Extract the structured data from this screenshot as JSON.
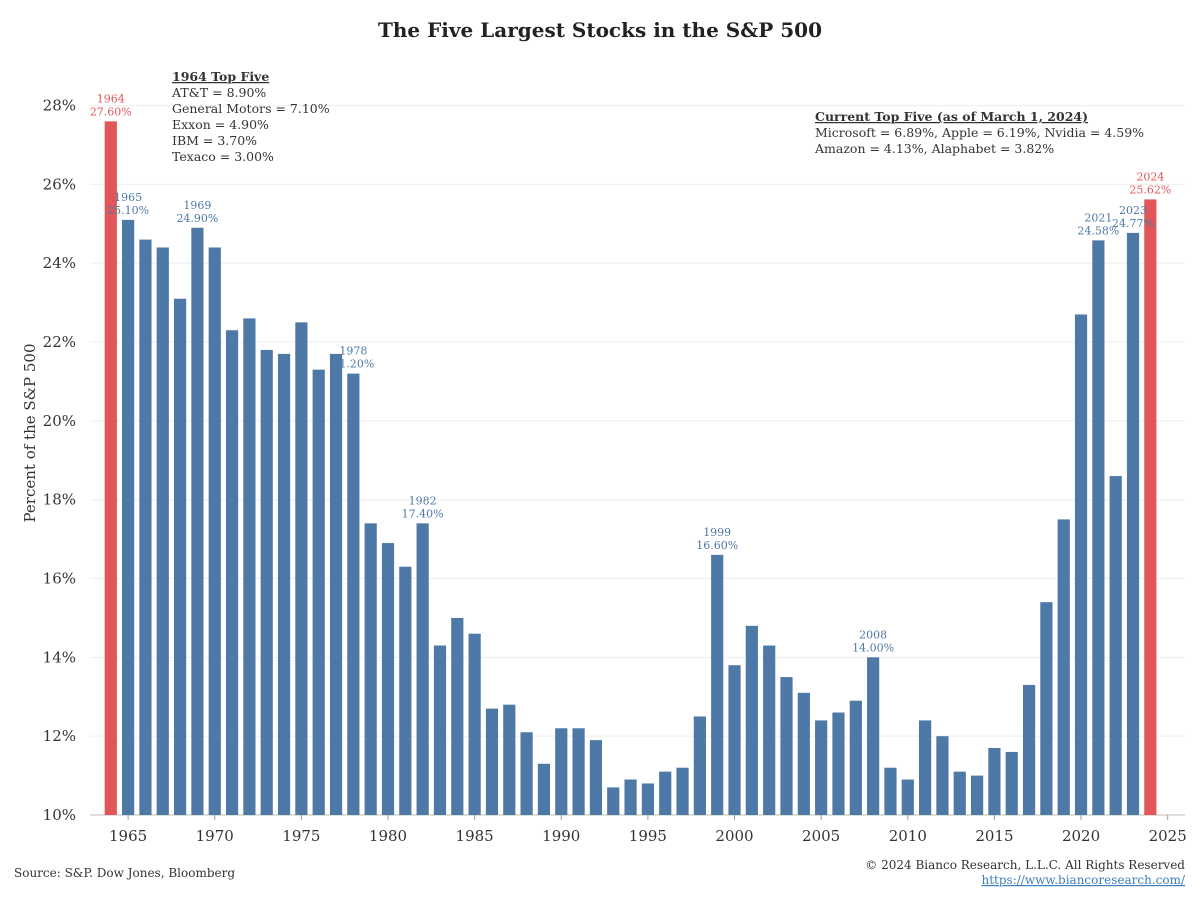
{
  "chart_data": {
    "type": "bar",
    "title": "The Five Largest Stocks in the S&P 500",
    "xlabel": "",
    "ylabel": "Percent of the S&P 500",
    "ylim": [
      10,
      28.7
    ],
    "xlim": [
      1962.8,
      2026
    ],
    "y_ticks": [
      "10%",
      "12%",
      "14%",
      "16%",
      "18%",
      "20%",
      "22%",
      "24%",
      "26%",
      "28%"
    ],
    "x_ticks": [
      "1965",
      "1970",
      "1975",
      "1980",
      "1985",
      "1990",
      "1995",
      "2000",
      "2005",
      "2010",
      "2015",
      "2020",
      "2025"
    ],
    "grid": "horizontal",
    "colors": {
      "bar": "#4e79a7",
      "highlight": "#e15759",
      "label": "#4e79a7"
    },
    "highlight_years": [
      1964,
      2024
    ],
    "years": [
      1964,
      1965,
      1966,
      1967,
      1968,
      1969,
      1970,
      1971,
      1972,
      1973,
      1974,
      1975,
      1976,
      1977,
      1978,
      1979,
      1980,
      1981,
      1982,
      1983,
      1984,
      1985,
      1986,
      1987,
      1988,
      1989,
      1990,
      1991,
      1992,
      1993,
      1994,
      1995,
      1996,
      1997,
      1998,
      1999,
      2000,
      2001,
      2002,
      2003,
      2004,
      2005,
      2006,
      2007,
      2008,
      2009,
      2010,
      2011,
      2012,
      2013,
      2014,
      2015,
      2016,
      2017,
      2018,
      2019,
      2020,
      2021,
      2022,
      2023,
      2024
    ],
    "values": [
      27.6,
      25.1,
      24.6,
      24.4,
      23.1,
      24.9,
      24.4,
      22.3,
      22.6,
      21.8,
      21.7,
      22.5,
      21.3,
      21.7,
      21.2,
      17.4,
      16.9,
      16.3,
      17.4,
      14.3,
      15.0,
      14.6,
      12.7,
      12.8,
      12.1,
      11.3,
      12.2,
      12.2,
      11.9,
      10.7,
      10.9,
      10.8,
      11.1,
      11.2,
      12.5,
      16.6,
      13.8,
      14.8,
      14.3,
      13.5,
      13.1,
      12.4,
      12.6,
      12.9,
      14.0,
      11.2,
      10.9,
      12.4,
      12.0,
      11.1,
      11.0,
      11.7,
      11.6,
      13.3,
      15.4,
      17.5,
      22.7,
      24.58,
      18.6,
      24.77,
      25.62
    ],
    "annotations": [
      {
        "year": 1964,
        "line1": "1964",
        "line2": "27.60%"
      },
      {
        "year": 1965,
        "line1": "1965",
        "line2": "25.10%"
      },
      {
        "year": 1969,
        "line1": "1969",
        "line2": "24.90%"
      },
      {
        "year": 1978,
        "line1": "1978",
        "line2": "21.20%"
      },
      {
        "year": 1982,
        "line1": "1982",
        "line2": "17.40%"
      },
      {
        "year": 1999,
        "line1": "1999",
        "line2": "16.60%"
      },
      {
        "year": 2008,
        "line1": "2008",
        "line2": "14.00%"
      },
      {
        "year": 2021,
        "line1": "2021",
        "line2": "24.58%"
      },
      {
        "year": 2023,
        "line1": "2023",
        "line2": "24.77%"
      },
      {
        "year": 2024,
        "line1": "2024",
        "line2": "25.62%"
      }
    ],
    "notes": {
      "top1964": {
        "heading": "1964 Top Five",
        "lines": [
          "AT&T = 8.90%",
          "General Motors = 7.10%",
          "Exxon = 4.90%",
          "IBM = 3.70%",
          "Texaco = 3.00%"
        ]
      },
      "current": {
        "heading": "Current Top Five (as of March 1, 2024)",
        "lines": [
          "Microsoft = 6.89%, Apple = 6.19%, Nvidia = 4.59%",
          "Amazon = 4.13%, Alaphabet = 3.82%"
        ]
      }
    },
    "source": "Source: S&P. Dow Jones, Bloomberg",
    "copyright": "© 2024 Bianco Research, L.L.C. All Rights Reserved",
    "url": "https://www.biancoresearch.com/"
  }
}
